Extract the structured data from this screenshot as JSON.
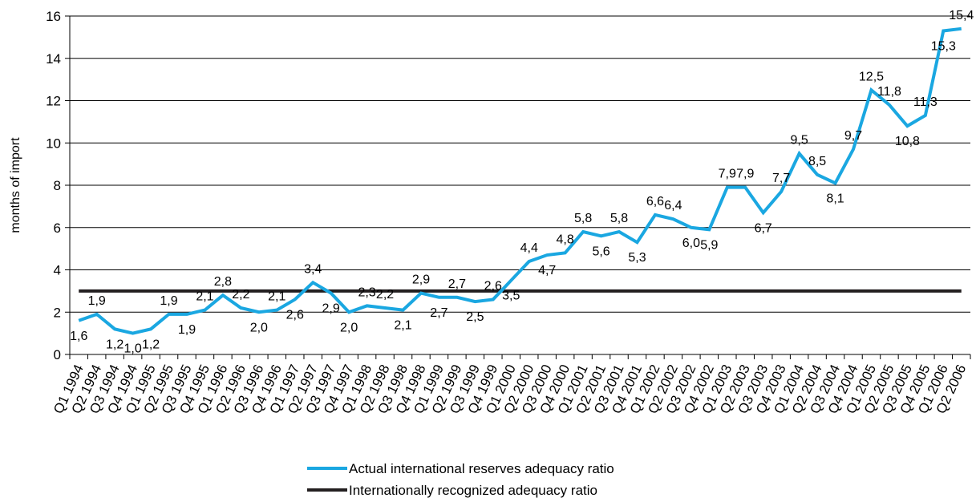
{
  "chart_data": {
    "type": "line",
    "title": "",
    "xlabel": "",
    "ylabel": "months of import",
    "ylim": [
      0,
      16
    ],
    "yticks": [
      "0",
      "2",
      "4",
      "6",
      "8",
      "10",
      "12",
      "14",
      "16"
    ],
    "grid": true,
    "legend_position": "bottom-center",
    "categories": [
      "Q1 1994",
      "Q2 1994",
      "Q3 1994",
      "Q4 1994",
      "Q1 1995",
      "Q2 1995",
      "Q3 1995",
      "Q4 1995",
      "Q1 1996",
      "Q2 1996",
      "Q3 1996",
      "Q4 1996",
      "Q1 1997",
      "Q2 1997",
      "Q3 1997",
      "Q4 1997",
      "Q1 1998",
      "Q2 1998",
      "Q3 1998",
      "Q4 1998",
      "Q1 1999",
      "Q2 1999",
      "Q3 1999",
      "Q4 1999",
      "Q1 2000",
      "Q2 2000",
      "Q3 2000",
      "Q4 2000",
      "Q1 2001",
      "Q2 2001",
      "Q3 2001",
      "Q4 2001",
      "Q1 2002",
      "Q2 2002",
      "Q3 2002",
      "Q4 2002",
      "Q1 2003",
      "Q2 2003",
      "Q3 2003",
      "Q4 2003",
      "Q1 2004",
      "Q2 2004",
      "Q3 2004",
      "Q4 2004",
      "Q1 2005",
      "Q2 2005",
      "Q3 2005",
      "Q4 2005",
      "Q1 2006",
      "Q2 2006"
    ],
    "series": [
      {
        "name": "Actual international reserves adequacy ratio",
        "color": "#1aa7e1",
        "values": [
          1.6,
          1.9,
          1.2,
          1.0,
          1.2,
          1.9,
          1.9,
          2.1,
          2.8,
          2.2,
          2.0,
          2.1,
          2.6,
          3.4,
          2.9,
          2.0,
          2.3,
          2.2,
          2.1,
          2.9,
          2.7,
          2.7,
          2.5,
          2.6,
          3.5,
          4.4,
          4.7,
          4.8,
          5.8,
          5.6,
          5.8,
          5.3,
          6.6,
          6.4,
          6.0,
          5.9,
          7.9,
          7.9,
          6.7,
          7.7,
          9.5,
          8.5,
          8.1,
          9.7,
          12.5,
          11.8,
          10.8,
          11.3,
          15.3,
          15.4
        ],
        "labels": [
          "1,6",
          "1,9",
          "1,2",
          "1,0",
          "1,2",
          "1,9",
          "1,9",
          "2,1",
          "2,8",
          "2,2",
          "2,0",
          "2,1",
          "2,6",
          "3,4",
          "2,9",
          "2,0",
          "2,3",
          "2,2",
          "2,1",
          "2,9",
          "2,7",
          "2,7",
          "2,5",
          "2,6",
          "3,5",
          "4,4",
          "4,7",
          "4,8",
          "5,8",
          "5,6",
          "5,8",
          "5,3",
          "6,6",
          "6,4",
          "6,0",
          "5,9",
          "7,9",
          "7,9",
          "6,7",
          "7,7",
          "9,5",
          "8,5",
          "8,1",
          "9,7",
          "12,5",
          "11,8",
          "10,8",
          "11,3",
          "15,3",
          "15,4"
        ]
      },
      {
        "name": "Internationally recognized adequacy ratio",
        "color": "#231f20",
        "values": [
          3,
          3,
          3,
          3,
          3,
          3,
          3,
          3,
          3,
          3,
          3,
          3,
          3,
          3,
          3,
          3,
          3,
          3,
          3,
          3,
          3,
          3,
          3,
          3,
          3,
          3,
          3,
          3,
          3,
          3,
          3,
          3,
          3,
          3,
          3,
          3,
          3,
          3,
          3,
          3,
          3,
          3,
          3,
          3,
          3,
          3,
          3,
          3,
          3,
          3
        ]
      }
    ]
  }
}
